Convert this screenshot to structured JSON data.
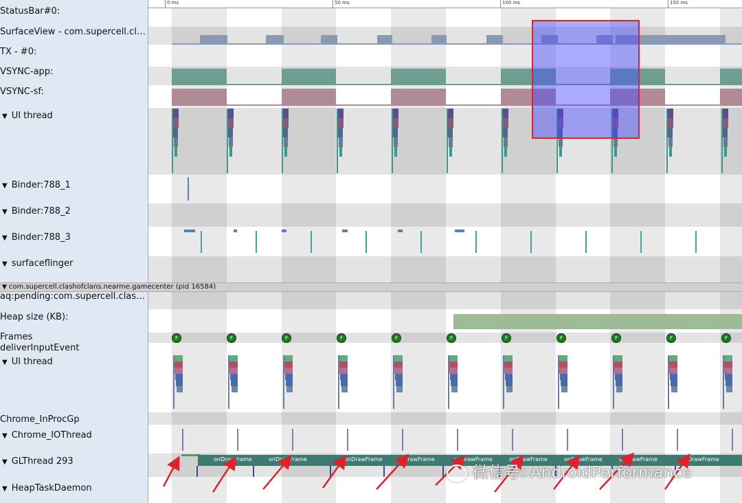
{
  "ruler": {
    "ticks": [
      {
        "label": "0 ms",
        "pos": 0
      },
      {
        "label": "50 ms",
        "pos": 50
      },
      {
        "label": "100 ms",
        "pos": 100
      },
      {
        "label": "150 ms",
        "pos": 150
      }
    ]
  },
  "tracks": {
    "statusbar": "StatusBar#0:",
    "surfaceview": "SurfaceView - com.supercell.clashofclans.nearme.gamecenter",
    "tx": "TX - #0:",
    "vsync_app": "VSYNC-app:",
    "vsync_sf": "VSYNC-sf:",
    "ui_thread": "UI thread",
    "binder1": "Binder:788_1",
    "binder2": "Binder:788_2",
    "binder3": "Binder:788_3",
    "surfaceflinger": "surfaceflinger",
    "process": "com.supercell.clashofclans.nearme.gamecenter (pid 16584)",
    "aq_pending": "aq:pending:com.supercell.clashofclans.nearme.gamecenter",
    "heap": "Heap size (KB):",
    "frames": "Frames",
    "deliver": "deliverInputEvent",
    "ui_thread2": "UI thread",
    "chrome_inproc": "Chrome_InProcGp",
    "chrome_io": "Chrome_IOThread",
    "glthread": "GLThread 293",
    "heaptask": "HeapTaskDaemon"
  },
  "frame_marker": "F",
  "draw_label": "onDrawFrame",
  "watermark": "微信号: AndroidPerformance",
  "colors": {
    "label_bg": "#dfe8f3",
    "vsync_app": "#6e9e92",
    "vsync_sf": "#b08a95",
    "surface": "#8a9ab5",
    "selection": "#4646ff",
    "selection_border": "#e0202a",
    "heap": "#9fba96",
    "frame_dot": "#1f7a1f",
    "glthread": "#3d7a70",
    "arrow": "#e0202a"
  },
  "icons": [
    "triangle-down-icon",
    "frame-marker-icon",
    "wechat-icon",
    "red-arrow-icon"
  ]
}
